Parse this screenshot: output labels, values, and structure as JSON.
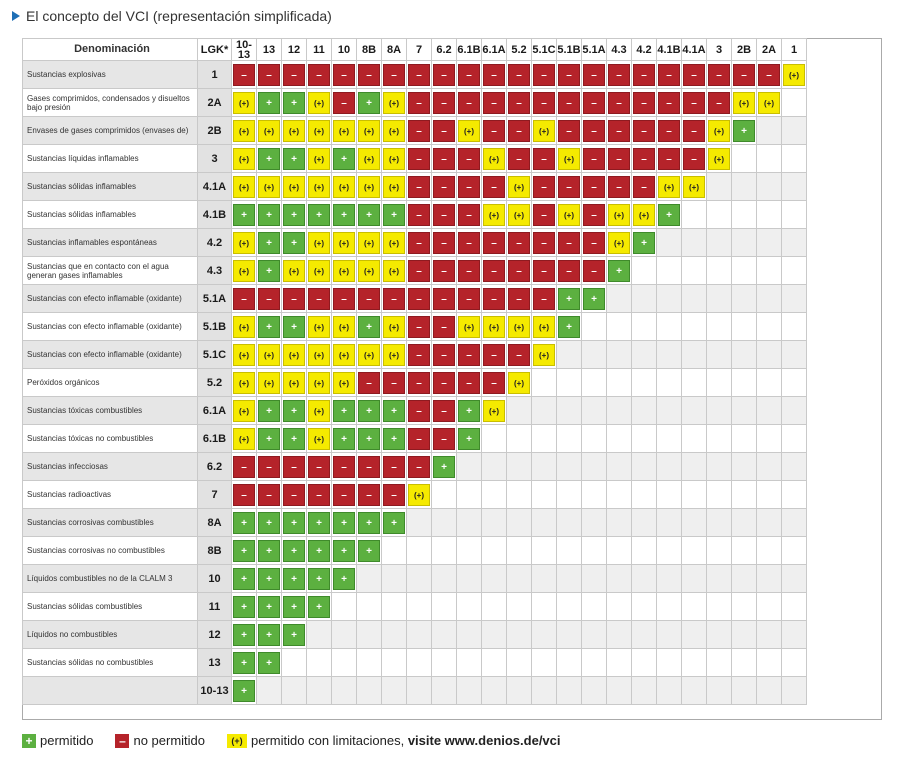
{
  "title": "El concepto del VCI (representación simplificada)",
  "header": {
    "name": "Denominación",
    "lgk": "LGK*"
  },
  "columns": [
    "10-13",
    "13",
    "12",
    "11",
    "10",
    "8B",
    "8A",
    "7",
    "6.2",
    "6.1B",
    "6.1A",
    "5.2",
    "5.1C",
    "5.1B",
    "5.1A",
    "4.3",
    "4.2",
    "4.1B",
    "4.1A",
    "3",
    "2B",
    "2A",
    "1"
  ],
  "rows": [
    {
      "name": "Sustancias explosivas",
      "lgk": "1",
      "cells": "RRRRRRRRRRRRRRRRRRRRRRY"
    },
    {
      "name": "Gases comprimidos, condensados y disueltos bajo presión",
      "lgk": "2A",
      "cells": "YGGYRGYRRRRRRRRRRRRRYY"
    },
    {
      "name": "Envases de gases comprimidos (envases de)",
      "lgk": "2B",
      "cells": "YYYYYYYRRYRRYRRRRRRYG"
    },
    {
      "name": "Sustancias líquidas inflamables",
      "lgk": "3",
      "cells": "YGGYGYYRRRYRRYRRRRRY"
    },
    {
      "name": "Sustancias sólidas inflamables",
      "lgk": "4.1A",
      "cells": "YYYYYYYRRRRYRRRRRYY"
    },
    {
      "name": "Sustancias sólidas inflamables",
      "lgk": "4.1B",
      "cells": "GGGGGGGRRRYYRYRYYG"
    },
    {
      "name": "Sustancias inflamables espontáneas",
      "lgk": "4.2",
      "cells": "YGGYYYYRRRRRRRRYG"
    },
    {
      "name": "Sustancias que en contacto con el agua generan gases inflamables",
      "lgk": "4.3",
      "cells": "YGYYYYYRRRRRRRRG"
    },
    {
      "name": "Sustancias con efecto inflamable (oxidante)",
      "lgk": "5.1A",
      "cells": "RRRRRRRRRRRRRGG"
    },
    {
      "name": "Sustancias con efecto inflamable (oxidante)",
      "lgk": "5.1B",
      "cells": "YGGYYGYRRYYYYG"
    },
    {
      "name": "Sustancias con efecto inflamable (oxidante)",
      "lgk": "5.1C",
      "cells": "YYYYYYYRRRRRY"
    },
    {
      "name": "Peróxidos orgánicos",
      "lgk": "5.2",
      "cells": "YYYYYRRRRRRY"
    },
    {
      "name": "Sustancias tóxicas combustibles",
      "lgk": "6.1A",
      "cells": "YGGYGGGRRGY"
    },
    {
      "name": "Sustancias tóxicas no combustibles",
      "lgk": "6.1B",
      "cells": "YGGYGGGRRG"
    },
    {
      "name": "Sustancias infecciosas",
      "lgk": "6.2",
      "cells": "RRRRRRRRG"
    },
    {
      "name": "Sustancias radioactivas",
      "lgk": "7",
      "cells": "RRRRRRRY"
    },
    {
      "name": "Sustancias corrosivas combustibles",
      "lgk": "8A",
      "cells": "GGGGGGG"
    },
    {
      "name": "Sustancias corrosivas no combustibles",
      "lgk": "8B",
      "cells": "GGGGGG"
    },
    {
      "name": "Líquidos combustibles no de la CLALM 3",
      "lgk": "10",
      "cells": "GGGGG"
    },
    {
      "name": "Sustancias sólidas combustibles",
      "lgk": "11",
      "cells": "GGGG"
    },
    {
      "name": "Líquidos no combustibles",
      "lgk": "12",
      "cells": "GGG"
    },
    {
      "name": "Sustancias sólidas no combustibles",
      "lgk": "13",
      "cells": "GG"
    },
    {
      "name": "",
      "lgk": "10-13",
      "cells": "G"
    }
  ],
  "symbols": {
    "G": "+",
    "R": "–",
    "Y": "(+)"
  },
  "colors": {
    "permitted": "#5cb040",
    "not_permitted": "#b5232a",
    "limited": "#f5ea00"
  },
  "legend": {
    "permitted_symbol": "+",
    "permitted": "permitido",
    "not_permitted_symbol": "–",
    "not_permitted": "no permitido",
    "limited_symbol": "(+)",
    "limited": "permitido con limitaciones,",
    "visit": "visite www.denios.de/vci"
  }
}
